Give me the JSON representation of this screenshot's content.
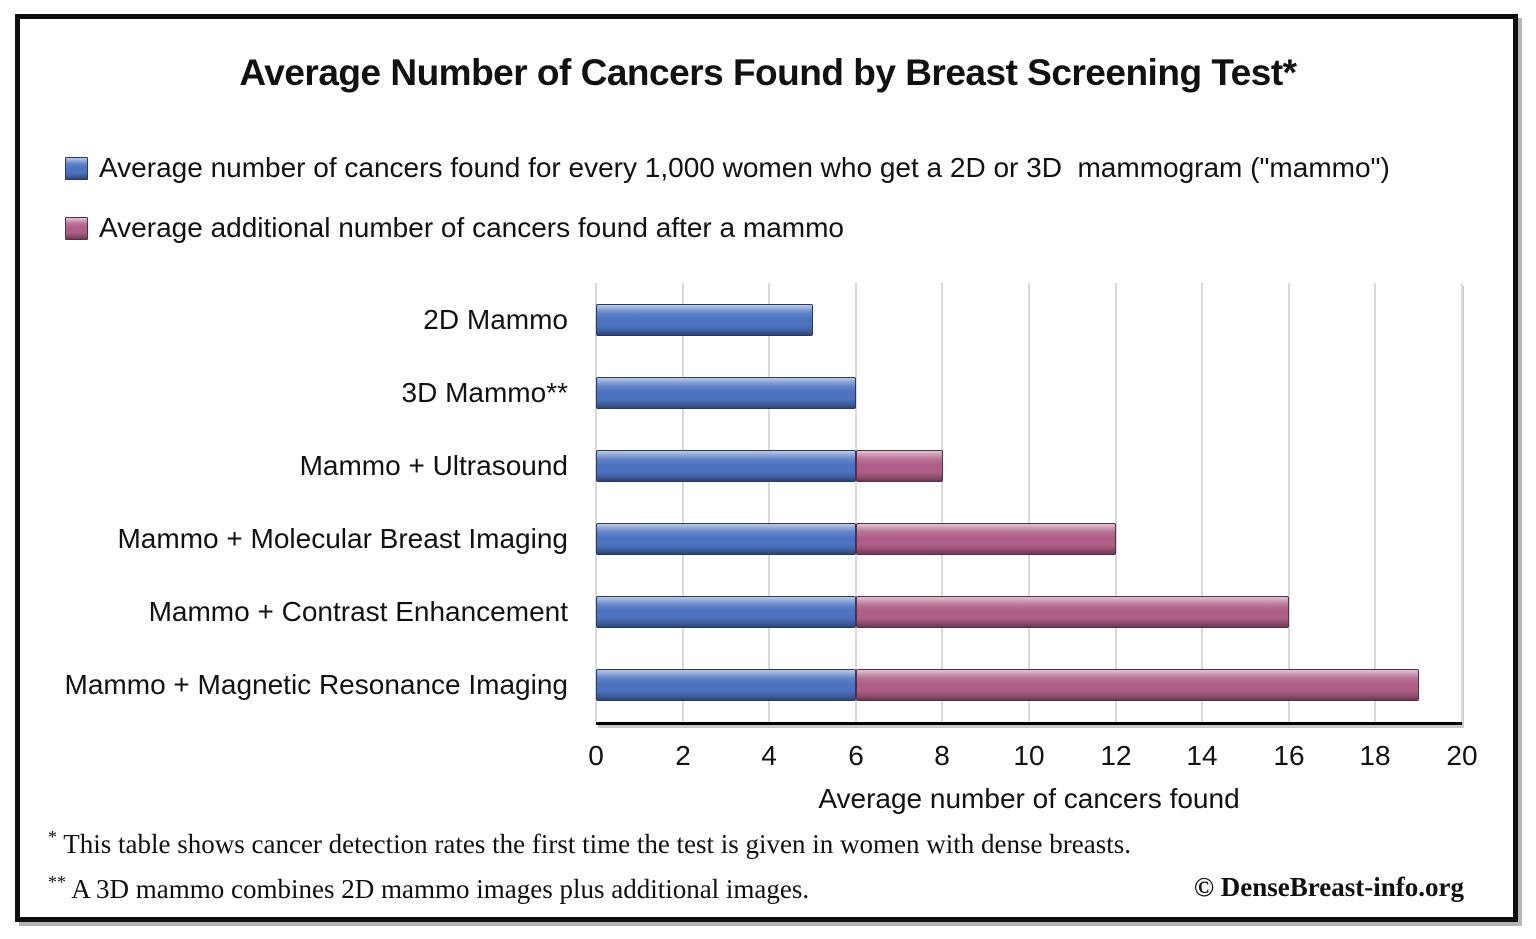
{
  "title": "Average Number of Cancers Found by Breast Screening Test*",
  "legend": [
    {
      "label": "Average number of cancers found for every 1,000 women who get a 2D or 3D  mammogram (\"mammo\")",
      "color": "#4D73C0"
    },
    {
      "label": "Average additional number of cancers found after a mammo",
      "color": "#AF5F87"
    }
  ],
  "chart_data": {
    "type": "bar",
    "orientation": "horizontal",
    "stacked": true,
    "title": "Average Number of Cancers Found by Breast Screening Test*",
    "categories": [
      "2D Mammo",
      "3D Mammo**",
      "Mammo + Ultrasound",
      "Mammo + Molecular Breast Imaging",
      "Mammo + Contrast Enhancement",
      "Mammo + Magnetic Resonance Imaging"
    ],
    "series": [
      {
        "name": "Average number of cancers found for every 1,000 women who get a 2D or 3D  mammogram (\"mammo\")",
        "color": "#4D73C0",
        "values": [
          5,
          6,
          6,
          6,
          6,
          6
        ]
      },
      {
        "name": "Average additional number of cancers found after a mammo",
        "color": "#AF5F87",
        "values": [
          0,
          0,
          2,
          6,
          10,
          13
        ]
      }
    ],
    "totals": [
      5,
      6,
      8,
      12,
      16,
      19
    ],
    "xlabel": "Average number of cancers found",
    "ylabel": "",
    "xlim": [
      0,
      20
    ],
    "xtick_step": 2,
    "grid": true,
    "legend_position": "top-left"
  },
  "footnotes": [
    {
      "marker": "*",
      "text": " This table shows cancer detection rates the first time the test is given in women with dense breasts."
    },
    {
      "marker": "**",
      "text": " A 3D mammo combines 2D mammo images plus additional images."
    }
  ],
  "copyright": "© DenseBreast-info.org",
  "colors": {
    "bar_mammo": "#4D73C0",
    "bar_additional": "#AF5F87",
    "gridline": "#D9D9D9",
    "axis_line": "#000000",
    "frame_border": "#0E0E0E",
    "background": "#FFFFFF",
    "text": "#111111"
  }
}
